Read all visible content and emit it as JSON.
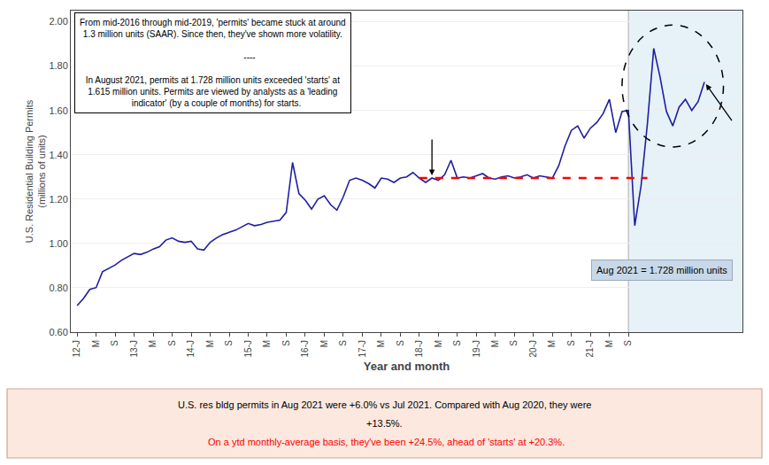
{
  "chart_data": {
    "type": "line",
    "xlabel": "Year and month",
    "ylabel": "U.S. Residential Building Permits\n(millions of units)",
    "categories": [
      "12-J",
      null,
      null,
      "M",
      null,
      null,
      "S",
      null,
      null,
      "13-J",
      null,
      null,
      "M",
      null,
      null,
      "S",
      null,
      null,
      "14-J",
      null,
      null,
      "M",
      null,
      null,
      "S",
      null,
      null,
      "15-J",
      null,
      null,
      "M",
      null,
      null,
      "S",
      null,
      null,
      "16-J",
      null,
      null,
      "M",
      null,
      null,
      "S",
      null,
      null,
      "17-J",
      null,
      null,
      "M",
      null,
      null,
      "S",
      null,
      null,
      "18-J",
      null,
      null,
      "M",
      null,
      null,
      "S",
      null,
      null,
      "19-J",
      null,
      null,
      "M",
      null,
      null,
      "S",
      null,
      null,
      "20-J",
      null,
      null,
      "M",
      null,
      null,
      "S",
      null,
      null,
      "21-J",
      null,
      null,
      "M",
      null,
      null,
      "S",
      null,
      null,
      null,
      null,
      null,
      null,
      null,
      null,
      null,
      null,
      null,
      null
    ],
    "series": [
      {
        "color": "#1f1f9f",
        "line_style": "solid",
        "values": [
          0.72,
          0.752,
          0.793,
          0.801,
          0.872,
          0.887,
          0.903,
          0.924,
          0.94,
          0.955,
          0.95,
          0.96,
          0.975,
          0.985,
          1.015,
          1.025,
          1.01,
          1.005,
          1.01,
          0.975,
          0.97,
          1.005,
          1.025,
          1.04,
          1.05,
          1.06,
          1.075,
          1.09,
          1.08,
          1.085,
          1.095,
          1.1,
          1.105,
          1.14,
          1.365,
          1.225,
          1.195,
          1.155,
          1.2,
          1.215,
          1.175,
          1.15,
          1.21,
          1.285,
          1.295,
          1.285,
          1.27,
          1.25,
          1.295,
          1.29,
          1.275,
          1.295,
          1.3,
          1.32,
          1.295,
          1.275,
          1.295,
          1.285,
          1.31,
          1.375,
          1.295,
          1.3,
          1.295,
          1.305,
          1.315,
          1.295,
          1.29,
          1.3,
          1.305,
          1.295,
          1.3,
          1.31,
          1.295,
          1.305,
          1.3,
          1.295,
          1.35,
          1.44,
          1.51,
          1.53,
          1.475,
          1.52,
          1.545,
          1.585,
          1.65,
          1.5,
          1.595,
          1.6,
          1.08,
          1.26,
          1.54,
          1.88,
          1.75,
          1.595,
          1.53,
          1.615,
          1.65,
          1.6,
          1.64,
          1.728
        ]
      },
      {
        "color": "#ff0000",
        "line_style": "dashed",
        "values": [
          null,
          null,
          null,
          null,
          null,
          null,
          null,
          null,
          null,
          null,
          null,
          null,
          null,
          null,
          null,
          null,
          null,
          null,
          null,
          null,
          null,
          null,
          null,
          null,
          null,
          null,
          null,
          null,
          null,
          null,
          null,
          null,
          null,
          null,
          null,
          null,
          null,
          null,
          null,
          null,
          null,
          null,
          null,
          null,
          null,
          null,
          null,
          null,
          null,
          null,
          null,
          null,
          null,
          null,
          1.295,
          1.295,
          1.295,
          1.295,
          1.295,
          1.295,
          1.295,
          1.295,
          1.295,
          1.295,
          1.295,
          1.295,
          1.295,
          1.295,
          1.295,
          1.295,
          1.295,
          1.295,
          1.295,
          1.295,
          1.295,
          1.295,
          1.295,
          1.295,
          1.295,
          1.295,
          1.295,
          1.295,
          1.295,
          1.295,
          1.295,
          1.295,
          1.295,
          1.295,
          1.295,
          1.295,
          1.295,
          null,
          null,
          null,
          null,
          null,
          null,
          null,
          null,
          null
        ]
      }
    ],
    "ylim": [
      0.6,
      2.05
    ],
    "yticks": [
      {
        "value": 0.6,
        "label": "0.60"
      },
      {
        "value": 0.8,
        "label": "0.80"
      },
      {
        "value": 1.0,
        "label": "1.00"
      },
      {
        "value": 1.2,
        "label": "1.20"
      },
      {
        "value": 1.4,
        "label": "1.40"
      },
      {
        "value": 1.6,
        "label": "1.60"
      },
      {
        "value": 1.8,
        "label": "1.80"
      },
      {
        "value": 2.0,
        "label": "2.00"
      }
    ],
    "grid": true,
    "annotations": [
      {
        "text": "From mid-2016 through mid-2019, 'permits' became stuck at around\n1.3 million units (SAAR). Since then, they've shown more volatility.\n\n                              ----\n\nIn August 2021, permits at 1.728 million units exceeded 'starts' at\n1.615 million units. Permits are viewed by analysts as a 'leading\n   indicator' (by a couple of months) for starts."
      },
      {
        "text": "Aug 2021 = 1.728 million units"
      },
      {
        "text": "U.S. res bldg permits in Aug 2021 were +6.0% vs Jul 2021. Compared with Aug 2020, they were"
      },
      {
        "text": "+13.5%."
      },
      {
        "text": " On a ytd monthly-average basis, they've been +24.5%, ahead of 'starts' at +20.3%.",
        "color": "red"
      }
    ]
  }
}
